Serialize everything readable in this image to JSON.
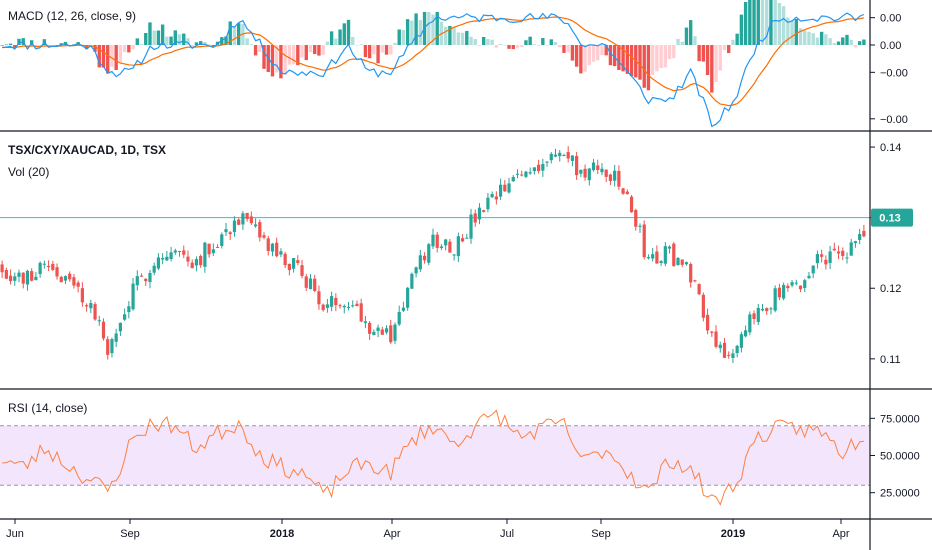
{
  "colors": {
    "background": "#ffffff",
    "up": "#26a69a",
    "down": "#ef5350",
    "macd_line": "#2196f3",
    "signal_line": "#ff6d00",
    "hist_up_strong": "#26a69a",
    "hist_up_weak": "#b2dfdb",
    "hist_down_strong": "#ef5350",
    "hist_down_weak": "#ffcdd2",
    "rsi_line": "#ff7f3f",
    "rsi_band": "#f3e5fc",
    "price_line": "#26c6da",
    "badge": "#26a69a",
    "pane_border": "#131722"
  },
  "panes": {
    "macd": {
      "title": "MACD (12, 26, close, 9)",
      "ticks": [
        "0.00",
        "0.00",
        "−0.00",
        "−0.00"
      ]
    },
    "price": {
      "title": "TSX/CXY/XAUCAD, 1D, TSX",
      "subtitle": "Vol (20)",
      "ticks": [
        "0.14",
        "0.13",
        "0.12",
        "0.11"
      ],
      "last_price_label": "0.13"
    },
    "rsi": {
      "title": "RSI (14, close)",
      "ticks": [
        "75.0000",
        "50.0000",
        "25.0000"
      ]
    }
  },
  "time_axis": {
    "labels": [
      {
        "text": "Jun",
        "bold": false
      },
      {
        "text": "Sep",
        "bold": false
      },
      {
        "text": "2018",
        "bold": true
      },
      {
        "text": "Apr",
        "bold": false
      },
      {
        "text": "Jul",
        "bold": false
      },
      {
        "text": "Sep",
        "bold": false
      },
      {
        "text": "2019",
        "bold": true
      },
      {
        "text": "Apr",
        "bold": false
      }
    ]
  },
  "chart_data": {
    "type": "candlestick",
    "title": "TSX/CXY/XAUCAD, 1D, TSX",
    "x": [
      "2017-06-01",
      "2017-06-20",
      "2017-07-10",
      "2017-08-01",
      "2017-08-20",
      "2017-09-01",
      "2017-09-20",
      "2017-10-10",
      "2017-11-01",
      "2017-11-20",
      "2017-12-10",
      "2017-12-20",
      "2018-01-01",
      "2018-01-20",
      "2018-02-10",
      "2018-03-01",
      "2018-03-20",
      "2018-04-01",
      "2018-04-20",
      "2018-05-10",
      "2018-06-01",
      "2018-06-20",
      "2018-07-01",
      "2018-07-20",
      "2018-08-10",
      "2018-08-20",
      "2018-09-01",
      "2018-09-20",
      "2018-10-01",
      "2018-10-10",
      "2018-11-01",
      "2018-11-20",
      "2018-12-10",
      "2018-12-20",
      "2019-01-01",
      "2019-01-20",
      "2019-02-10",
      "2019-03-01",
      "2019-03-20",
      "2019-04-01",
      "2019-04-12"
    ],
    "close": [
      0.123,
      0.121,
      0.124,
      0.121,
      0.118,
      0.111,
      0.119,
      0.124,
      0.125,
      0.124,
      0.127,
      0.13,
      0.127,
      0.124,
      0.122,
      0.117,
      0.119,
      0.115,
      0.113,
      0.121,
      0.127,
      0.126,
      0.13,
      0.133,
      0.136,
      0.138,
      0.139,
      0.136,
      0.137,
      0.133,
      0.124,
      0.125,
      0.122,
      0.113,
      0.11,
      0.117,
      0.119,
      0.12,
      0.125,
      0.124,
      0.128
    ],
    "last_price": 0.13,
    "price_ylim": [
      0.107,
      0.141
    ],
    "macd_ylim": [
      -0.003,
      0.0015
    ],
    "rsi_ylim": [
      10,
      90
    ],
    "rsi_band": [
      30,
      70
    ],
    "macd": [
      0.0,
      0.0,
      0.0,
      0.0,
      0.0,
      -0.001,
      -0.001,
      0.0,
      0.0,
      0.0,
      0.0,
      0.001,
      0.0,
      -0.001,
      -0.001,
      -0.001,
      0.0,
      -0.001,
      -0.001,
      0.0,
      0.001,
      0.001,
      0.001,
      0.001,
      0.001,
      0.001,
      0.001,
      0.0,
      0.0,
      -0.001,
      -0.002,
      -0.002,
      -0.001,
      -0.003,
      -0.002,
      0.0,
      0.001,
      0.001,
      0.001,
      0.001,
      0.001
    ],
    "rsi": [
      48,
      42,
      55,
      44,
      34,
      26,
      60,
      72,
      70,
      55,
      65,
      72,
      50,
      42,
      38,
      22,
      40,
      45,
      38,
      60,
      70,
      58,
      70,
      78,
      62,
      68,
      72,
      45,
      55,
      40,
      25,
      48,
      40,
      18,
      30,
      62,
      68,
      68,
      66,
      52,
      64
    ]
  }
}
